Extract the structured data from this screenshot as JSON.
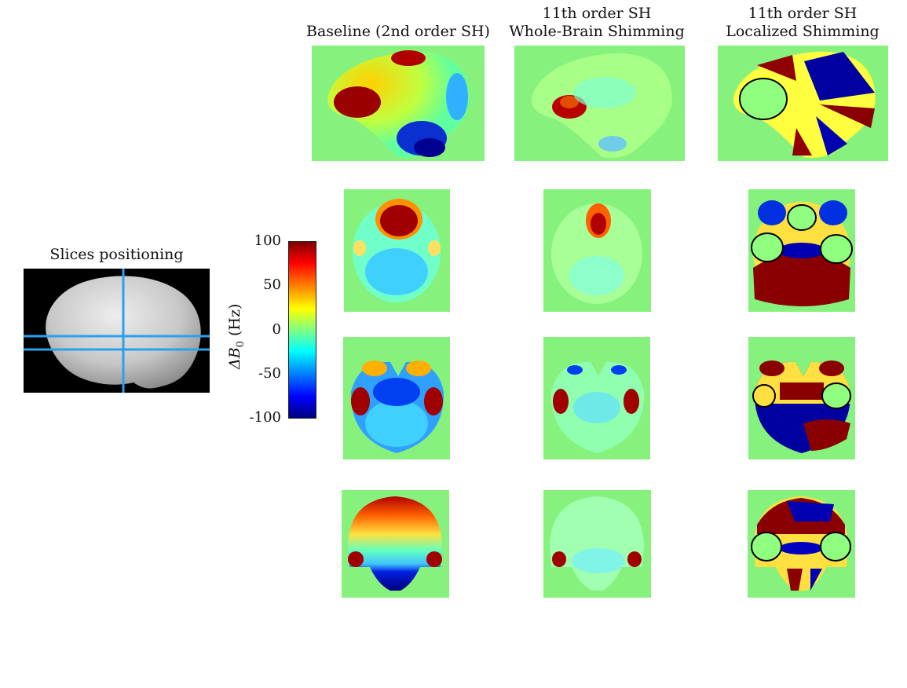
{
  "figure": {
    "columns": [
      {
        "line1": "",
        "line2": "Baseline (2nd order SH)"
      },
      {
        "line1": "11th order SH",
        "line2": "Whole-Brain Shimming"
      },
      {
        "line1": "11th order SH",
        "line2": "Localized Shimming"
      }
    ],
    "slices_title": "Slices positioning",
    "colorbar": {
      "label_main": "ΔB",
      "label_sub": "0",
      "label_unit": "(Hz)",
      "ticks": [
        "100",
        "50",
        "0",
        "-50",
        "-100"
      ],
      "colormap": "jet"
    }
  },
  "colors": {
    "background_field": "#86f27d",
    "slice_lines": "#2aa0f0",
    "roi_outline": "#000000"
  }
}
